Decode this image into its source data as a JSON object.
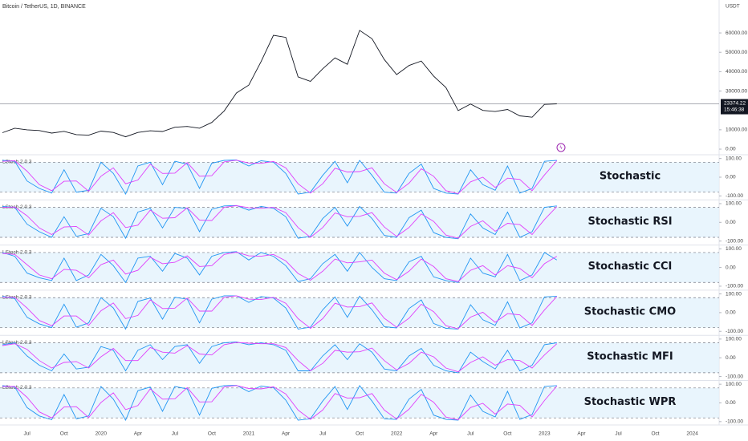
{
  "chart_data": [
    {
      "type": "line",
      "title": "Bitcoin / TetherUS, 1D, BINANCE",
      "y_unit": "USDT",
      "countdown": "15:46:38",
      "categories": [
        null,
        null,
        "Jul",
        null,
        null,
        "Oct",
        null,
        null,
        "2020",
        null,
        null,
        "Apr",
        null,
        null,
        "Jul",
        null,
        null,
        "Oct",
        null,
        null,
        "2021",
        null,
        null,
        "Apr",
        null,
        null,
        "Jul",
        null,
        null,
        "Oct",
        null,
        null,
        "2022",
        null,
        null,
        "Apr",
        null,
        null,
        "Jul",
        null,
        null,
        "Oct",
        null,
        null,
        "2023",
        null,
        null,
        "Apr",
        null,
        null,
        "Jul",
        null,
        null,
        "Oct",
        null,
        null,
        "2024"
      ],
      "color": "#131722",
      "values": [
        8500,
        10800,
        10000,
        9600,
        8300,
        9200,
        7500,
        7200,
        9300,
        8600,
        6400,
        8600,
        9500,
        9100,
        11300,
        11700,
        10800,
        13800,
        19700,
        29000,
        33100,
        45200,
        58800,
        57700,
        37300,
        35000,
        41500,
        47100,
        43800,
        61300,
        57000,
        46300,
        38500,
        43200,
        45500,
        37700,
        31800,
        19900,
        23300,
        20000,
        19400,
        20500,
        17200,
        16500,
        23100,
        23374.22,
        null,
        null,
        null,
        null,
        null,
        null,
        null,
        null,
        null,
        null,
        null
      ],
      "ylim": [
        -1650,
        77000
      ],
      "yticks": [
        {
          "value": 0,
          "label": "0.00"
        },
        {
          "value": 10000,
          "label": "10000.00"
        },
        {
          "value": 30000,
          "label": "30000.00"
        },
        {
          "value": 40000,
          "label": "40000.00"
        },
        {
          "value": 50000,
          "label": "50000.00"
        },
        {
          "value": 60000,
          "label": "60000.00"
        }
      ]
    },
    {
      "type": "line",
      "title": "Stochastic",
      "indicator": "LStoch 2.0.3",
      "ylim": [
        -120,
        120
      ],
      "bands": [
        80,
        -80
      ],
      "yticks": [
        {
          "value": 100,
          "label": "100.00"
        },
        {
          "value": 0,
          "label": "0.00"
        },
        {
          "value": -100,
          "label": "-100.00"
        }
      ],
      "series": [
        {
          "color": "#2196f3",
          "values": [
            90,
            85,
            -20,
            -60,
            -85,
            40,
            -80,
            -70,
            80,
            20,
            -90,
            60,
            80,
            -40,
            85,
            70,
            -60,
            75,
            90,
            92,
            60,
            88,
            80,
            20,
            -90,
            -80,
            10,
            85,
            -30,
            90,
            10,
            -80,
            -85,
            20,
            70,
            -60,
            -85,
            -90,
            40,
            -40,
            -70,
            60,
            -85,
            -60,
            85,
            90
          ]
        },
        {
          "color": "#e040fb",
          "values": [
            85,
            88,
            32,
            -40,
            -72,
            -22,
            -20,
            -75,
            5,
            50,
            -35,
            -15,
            70,
            20,
            22,
            78,
            5,
            8,
            82,
            91,
            76,
            74,
            84,
            50,
            -35,
            -85,
            -35,
            48,
            28,
            30,
            50,
            -35,
            -82,
            -32,
            45,
            5,
            -72,
            -88,
            -25,
            0,
            -55,
            -5,
            -12,
            -72,
            12,
            88
          ]
        }
      ]
    },
    {
      "type": "line",
      "title": "Stochastic RSI",
      "indicator": "LStoch 2.0.3",
      "ylim": [
        -120,
        120
      ],
      "bands": [
        80,
        -80
      ],
      "yticks": [
        {
          "value": 100,
          "label": "100.00"
        },
        {
          "value": 0,
          "label": "0.00"
        },
        {
          "value": -100,
          "label": "-100.00"
        }
      ],
      "series": [
        {
          "color": "#2196f3",
          "values": [
            85,
            80,
            -10,
            -50,
            -80,
            30,
            -75,
            -60,
            75,
            30,
            -85,
            55,
            75,
            -30,
            80,
            75,
            -50,
            70,
            88,
            90,
            65,
            85,
            75,
            30,
            -85,
            -75,
            20,
            80,
            -20,
            85,
            20,
            -70,
            -80,
            25,
            65,
            -55,
            -80,
            -88,
            45,
            -30,
            -65,
            55,
            -80,
            -50,
            80,
            88
          ]
        },
        {
          "color": "#e040fb",
          "values": [
            80,
            82,
            35,
            -30,
            -65,
            -25,
            -22,
            -68,
            8,
            52,
            -28,
            -15,
            65,
            22,
            25,
            78,
            12,
            10,
            80,
            89,
            78,
            75,
            80,
            52,
            -28,
            -80,
            -28,
            50,
            30,
            32,
            52,
            -25,
            -75,
            -28,
            45,
            5,
            -68,
            -85,
            -22,
            8,
            -48,
            -5,
            -12,
            -65,
            15,
            84
          ]
        }
      ]
    },
    {
      "type": "line",
      "title": "Stochastic CCI",
      "indicator": "LStoch 2.0.3",
      "ylim": [
        -120,
        120
      ],
      "bands": [
        80,
        -80
      ],
      "yticks": [
        {
          "value": 100,
          "label": "100.00"
        },
        {
          "value": 0,
          "label": "0.00"
        },
        {
          "value": -100,
          "label": "-100.00"
        }
      ],
      "series": [
        {
          "color": "#2196f3",
          "values": [
            80,
            60,
            -30,
            -55,
            -70,
            50,
            -70,
            -40,
            70,
            10,
            -80,
            50,
            60,
            -20,
            75,
            50,
            -40,
            60,
            80,
            85,
            40,
            80,
            60,
            10,
            -75,
            -60,
            20,
            70,
            -20,
            80,
            0,
            -60,
            -70,
            30,
            60,
            -50,
            -70,
            -80,
            50,
            -30,
            -50,
            70,
            -70,
            -40,
            80,
            40
          ]
        },
        {
          "color": "#e040fb",
          "values": [
            75,
            70,
            15,
            -40,
            -60,
            -10,
            -15,
            -55,
            15,
            40,
            -35,
            -15,
            55,
            20,
            28,
            62,
            5,
            10,
            70,
            82,
            62,
            60,
            70,
            35,
            -32,
            -68,
            -20,
            45,
            25,
            30,
            40,
            -30,
            -65,
            -20,
            45,
            5,
            -60,
            -75,
            -15,
            10,
            -40,
            10,
            -5,
            -55,
            20,
            60
          ]
        }
      ]
    },
    {
      "type": "line",
      "title": "Stochastic CMO",
      "indicator": "LStoch 2.0.3",
      "ylim": [
        -120,
        120
      ],
      "bands": [
        80,
        -80
      ],
      "yticks": [
        {
          "value": 100,
          "label": "100.00"
        },
        {
          "value": 0,
          "label": "0.00"
        },
        {
          "value": -100,
          "label": "-100.00"
        }
      ],
      "series": [
        {
          "color": "#2196f3",
          "values": [
            88,
            75,
            -25,
            -60,
            -80,
            45,
            -78,
            -55,
            80,
            25,
            -88,
            60,
            78,
            -35,
            82,
            72,
            -55,
            72,
            90,
            90,
            55,
            86,
            78,
            25,
            -88,
            -78,
            15,
            84,
            -25,
            88,
            15,
            -75,
            -82,
            22,
            68,
            -58,
            -84,
            -88,
            42,
            -38,
            -68,
            58,
            -82,
            -55,
            84,
            88
          ]
        },
        {
          "color": "#e040fb",
          "values": [
            82,
            82,
            25,
            -42,
            -70,
            -18,
            -18,
            -68,
            10,
            52,
            -32,
            -15,
            68,
            22,
            24,
            78,
            8,
            8,
            82,
            90,
            72,
            70,
            82,
            50,
            -32,
            -84,
            -32,
            50,
            30,
            32,
            52,
            -30,
            -78,
            -30,
            45,
            5,
            -70,
            -86,
            -24,
            2,
            -52,
            -5,
            -12,
            -68,
            14,
            86
          ]
        }
      ]
    },
    {
      "type": "line",
      "title": "Stochastic MFI",
      "indicator": "LStoch 2.0.3",
      "ylim": [
        -120,
        120
      ],
      "bands": [
        80,
        -80
      ],
      "yticks": [
        {
          "value": 100,
          "label": "100.00"
        },
        {
          "value": 0,
          "label": "0.00"
        },
        {
          "value": -100,
          "label": "-100.00"
        }
      ],
      "series": [
        {
          "color": "#2196f3",
          "values": [
            70,
            80,
            10,
            -40,
            -70,
            20,
            -60,
            -50,
            60,
            40,
            -70,
            40,
            70,
            -10,
            60,
            70,
            -30,
            60,
            80,
            85,
            70,
            80,
            70,
            40,
            -70,
            -70,
            10,
            70,
            -10,
            75,
            30,
            -60,
            -70,
            10,
            50,
            -40,
            -70,
            -80,
            30,
            -20,
            -60,
            40,
            -70,
            -40,
            70,
            80
          ]
        },
        {
          "color": "#e040fb",
          "values": [
            65,
            75,
            45,
            -15,
            -55,
            -25,
            -20,
            -55,
            5,
            50,
            -15,
            -15,
            55,
            30,
            25,
            65,
            20,
            15,
            70,
            82,
            78,
            75,
            75,
            55,
            -15,
            -70,
            -30,
            40,
            30,
            32,
            52,
            -15,
            -65,
            -30,
            30,
            5,
            -55,
            -75,
            -25,
            5,
            -40,
            -10,
            -15,
            -55,
            15,
            75
          ]
        }
      ]
    },
    {
      "type": "line",
      "title": "Stochastic WPR",
      "indicator": "LStoch 2.0.3",
      "ylim": [
        -120,
        120
      ],
      "bands": [
        80,
        -80
      ],
      "yticks": [
        {
          "value": 100,
          "label": "100.00"
        },
        {
          "value": 0,
          "label": "0.00"
        },
        {
          "value": -100,
          "label": "-100.00"
        }
      ],
      "series": [
        {
          "color": "#2196f3",
          "values": [
            92,
            85,
            -25,
            -70,
            -90,
            45,
            -85,
            -70,
            88,
            20,
            -92,
            65,
            85,
            -45,
            88,
            75,
            -65,
            78,
            92,
            94,
            60,
            90,
            82,
            15,
            -92,
            -85,
            10,
            88,
            -35,
            92,
            10,
            -85,
            -88,
            20,
            72,
            -65,
            -88,
            -92,
            42,
            -45,
            -75,
            62,
            -88,
            -62,
            88,
            92
          ]
        },
        {
          "color": "#e040fb",
          "values": [
            88,
            88,
            30,
            -48,
            -80,
            -22,
            -20,
            -78,
            2,
            54,
            -36,
            -14,
            75,
            20,
            22,
            82,
            5,
            6,
            85,
            93,
            77,
            75,
            86,
            48,
            -38,
            -88,
            -38,
            50,
            26,
            28,
            50,
            -38,
            -86,
            -34,
            46,
            4,
            -76,
            -90,
            -25,
            -2,
            -60,
            -6,
            -13,
            -75,
            13,
            90
          ]
        }
      ]
    }
  ]
}
